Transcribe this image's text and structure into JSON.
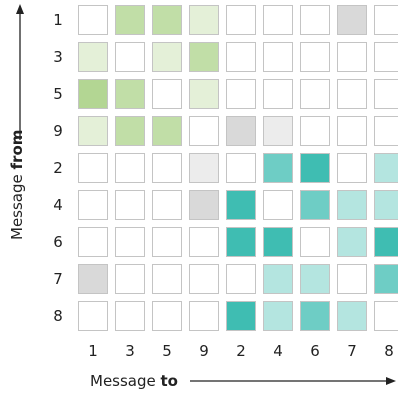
{
  "chart_data": {
    "type": "heatmap",
    "rows": [
      "1",
      "3",
      "5",
      "9",
      "2",
      "4",
      "6",
      "7",
      "8"
    ],
    "columns": [
      "1",
      "3",
      "5",
      "9",
      "2",
      "4",
      "6",
      "7",
      "8"
    ],
    "xlabel_prefix": "Message ",
    "xlabel_bold": "to",
    "ylabel_prefix": "Message ",
    "ylabel_bold": "from",
    "cells": [
      [
        "w",
        "g2",
        "g2",
        "g1",
        "w",
        "w",
        "w",
        "n2",
        "w"
      ],
      [
        "g1",
        "w",
        "g1",
        "g2",
        "w",
        "w",
        "w",
        "w",
        "w"
      ],
      [
        "g3",
        "g2",
        "w",
        "g1",
        "w",
        "w",
        "w",
        "w",
        "w"
      ],
      [
        "g1",
        "g2",
        "g2",
        "w",
        "n2",
        "n1",
        "w",
        "w",
        "w"
      ],
      [
        "w",
        "w",
        "w",
        "n1",
        "w",
        "t2",
        "t3",
        "w",
        "t1"
      ],
      [
        "w",
        "w",
        "w",
        "n2",
        "t3",
        "w",
        "t2",
        "t1",
        "t1"
      ],
      [
        "w",
        "w",
        "w",
        "w",
        "t3",
        "t3",
        "w",
        "t1",
        "t3"
      ],
      [
        "n2",
        "w",
        "w",
        "w",
        "w",
        "t1",
        "t1",
        "w",
        "t2"
      ],
      [
        "w",
        "w",
        "w",
        "w",
        "t3",
        "t1",
        "t2",
        "t1",
        "w"
      ]
    ],
    "palette": {
      "w": "#ffffff",
      "g1": "#e4f0d8",
      "g2": "#c1dea7",
      "g3": "#b3d693",
      "n1": "#ececec",
      "n2": "#d9d9d9",
      "t1": "#b4e5e0",
      "t2": "#6ecdc5",
      "t3": "#3fbdb2"
    }
  }
}
